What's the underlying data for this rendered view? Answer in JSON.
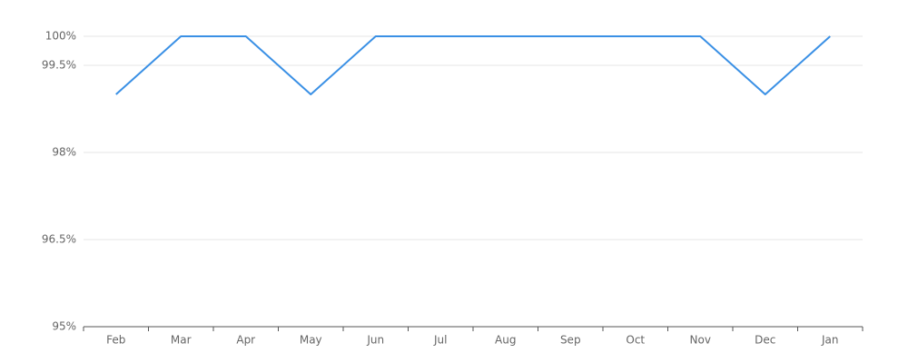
{
  "chart_data": {
    "type": "line",
    "categories": [
      "Feb",
      "Mar",
      "Apr",
      "May",
      "Jun",
      "Jul",
      "Aug",
      "Sep",
      "Oct",
      "Nov",
      "Dec",
      "Jan"
    ],
    "values": [
      99,
      100,
      100,
      99,
      100,
      100,
      100,
      100,
      100,
      100,
      99,
      100
    ],
    "color": "#3a90e5",
    "ylim": [
      95,
      100
    ],
    "yticks": [
      {
        "value": 95,
        "label": "95%"
      },
      {
        "value": 96.5,
        "label": "96.5%"
      },
      {
        "value": 98,
        "label": "98%"
      },
      {
        "value": 99.5,
        "label": "99.5%"
      },
      {
        "value": 100,
        "label": "100%"
      }
    ],
    "grid": true
  }
}
